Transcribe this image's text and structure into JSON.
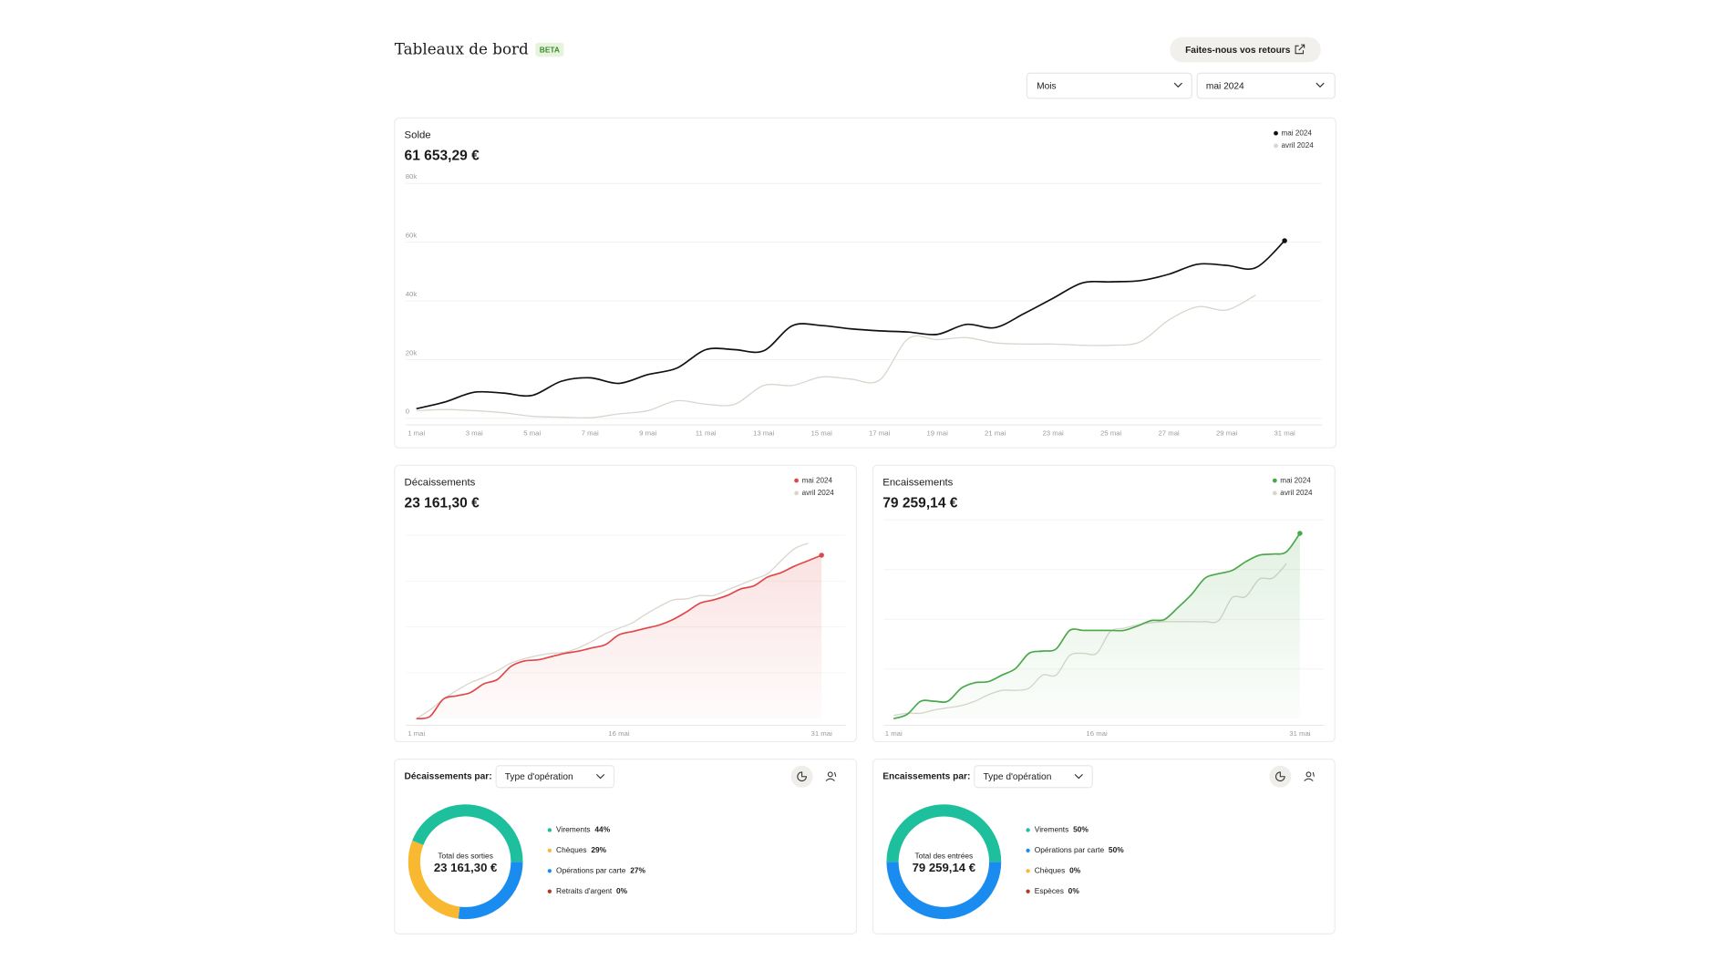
{
  "header": {
    "title": "Tableaux de bord",
    "badge": "BETA",
    "feedback_button": "Faites-nous vos retours"
  },
  "filters": {
    "period": "Mois",
    "month": "mai 2024"
  },
  "chart_data": [
    {
      "type": "line",
      "title": "Solde",
      "total": "61 653,29 €",
      "categories": [
        "1 mai",
        null,
        "3 mai",
        null,
        "5 mai",
        null,
        "7 mai",
        null,
        "9 mai",
        null,
        "11 mai",
        null,
        "13 mai",
        null,
        "15 mai",
        null,
        "17 mai",
        null,
        "19 mai",
        null,
        "21 mai",
        null,
        "23 mai",
        null,
        "25 mai",
        null,
        "27 mai",
        null,
        "29 mai",
        null,
        "31 mai"
      ],
      "series": [
        {
          "name": "mai 2024",
          "color": "#111111",
          "values": [
            3300,
            5600,
            8900,
            8600,
            7800,
            12600,
            13800,
            11900,
            14900,
            17100,
            23400,
            23400,
            23000,
            31600,
            31600,
            30500,
            29800,
            29400,
            28600,
            32000,
            30900,
            35700,
            40900,
            46100,
            46500,
            46900,
            49100,
            52500,
            52100,
            51300,
            60500
          ]
        },
        {
          "name": "avril 2024",
          "color": "#d9d6cd",
          "values": [
            2600,
            3000,
            2600,
            1900,
            700,
            400,
            200,
            1500,
            2600,
            6000,
            4800,
            4800,
            11200,
            11200,
            14100,
            13400,
            13000,
            27200,
            26800,
            27500,
            25700,
            25300,
            25300,
            24900,
            24900,
            26000,
            33500,
            38000,
            36900,
            42000,
            null
          ]
        }
      ],
      "ylim": [
        0,
        80000
      ],
      "yticks": [
        0,
        {
          "value": 20000,
          "label": "20k"
        },
        {
          "value": 40000,
          "label": "40k"
        },
        {
          "value": 60000,
          "label": "60k"
        },
        {
          "value": 80000,
          "label": "80k"
        }
      ],
      "grid": true,
      "legend": "top-right"
    },
    {
      "type": "area",
      "title": "Décaissements",
      "total": "23 161,30 €",
      "categories": [
        "1 mai",
        null,
        null,
        null,
        null,
        null,
        null,
        null,
        null,
        null,
        null,
        null,
        null,
        null,
        null,
        "16 mai",
        null,
        null,
        null,
        null,
        null,
        null,
        null,
        null,
        null,
        null,
        null,
        null,
        null,
        null,
        "31 mai"
      ],
      "series": [
        {
          "name": "mai 2024",
          "color": "#e04848",
          "area": true,
          "values": [
            0,
            309,
            2779,
            3242,
            3706,
            4941,
            5558,
            7411,
            8183,
            8338,
            8801,
            9264,
            9573,
            10036,
            10499,
            11889,
            12352,
            12815,
            13278,
            14050,
            15131,
            16366,
            16830,
            17447,
            18374,
            18837,
            20072,
            20690,
            21616,
            22388,
            23161.3
          ]
        },
        {
          "name": "avril 2024",
          "color": "#d9d6cd",
          "values": [
            0,
            1235,
            2779,
            4014,
            5095,
            5867,
            6794,
            7874,
            8492,
            8955,
            9264,
            9418,
            10036,
            10963,
            12043,
            12815,
            13587,
            14822,
            15903,
            16830,
            16984,
            17447,
            17447,
            18219,
            18991,
            19763,
            20535,
            22388,
            24086,
            24858,
            null
          ]
        }
      ],
      "ylim": [
        0,
        26000
      ],
      "legend": "top-right"
    },
    {
      "type": "area",
      "title": "Encaissements",
      "total": "79 259,14 €",
      "categories": [
        "1 mai",
        null,
        null,
        null,
        null,
        null,
        null,
        null,
        null,
        null,
        null,
        null,
        null,
        null,
        null,
        "16 mai",
        null,
        null,
        null,
        null,
        null,
        null,
        null,
        null,
        null,
        null,
        null,
        null,
        null,
        null,
        "31 mai"
      ],
      "series": [
        {
          "name": "mai 2024",
          "color": "#4aa84a",
          "area": true,
          "values": [
            0,
            1865,
            7459,
            7459,
            7459,
            13054,
            15385,
            15851,
            18648,
            21445,
            27972,
            28904,
            29837,
            37762,
            37762,
            37762,
            37762,
            37762,
            39627,
            41958,
            42424,
            47552,
            53146,
            60139,
            62004,
            63403,
            67132,
            69929,
            70396,
            71328,
            79259.14
          ]
        },
        {
          "name": "avril 2024",
          "color": "#d9d6cd",
          "values": [
            1399,
            2331,
            2331,
            3730,
            4662,
            5594,
            7459,
            10256,
            12122,
            12122,
            13054,
            18648,
            18648,
            27040,
            27972,
            27972,
            37296,
            38695,
            40093,
            41026,
            41492,
            41492,
            41492,
            41492,
            41958,
            51748,
            52214,
            59673,
            60139,
            66200,
            null
          ]
        }
      ],
      "ylim": [
        0,
        85000
      ],
      "legend": "top-right"
    },
    {
      "type": "pie",
      "title": "Décaissements par:",
      "group_by": "Type d'opération",
      "center_label": "Total des sorties",
      "total": "23 161,30 €",
      "categories": [
        "Virements",
        "Chèques",
        "Opérations par carte",
        "Retraits d'argent"
      ],
      "values": [
        44,
        29,
        27,
        0
      ],
      "value_labels": [
        "44%",
        "29%",
        "27%",
        "0%"
      ],
      "colors": [
        "#1dbf9d",
        "#f8b830",
        "#1a8cf0",
        "#b0392c"
      ]
    },
    {
      "type": "pie",
      "title": "Encaissements par:",
      "group_by": "Type d'opération",
      "center_label": "Total des entrées",
      "total": "79 259,14 €",
      "categories": [
        "Virements",
        "Opérations par carte",
        "Chèques",
        "Espèces"
      ],
      "values": [
        50,
        50,
        0,
        0
      ],
      "value_labels": [
        "50%",
        "50%",
        "0%",
        "0%"
      ],
      "colors": [
        "#1dbf9d",
        "#1a8cf0",
        "#f8b830",
        "#b0392c"
      ]
    }
  ]
}
